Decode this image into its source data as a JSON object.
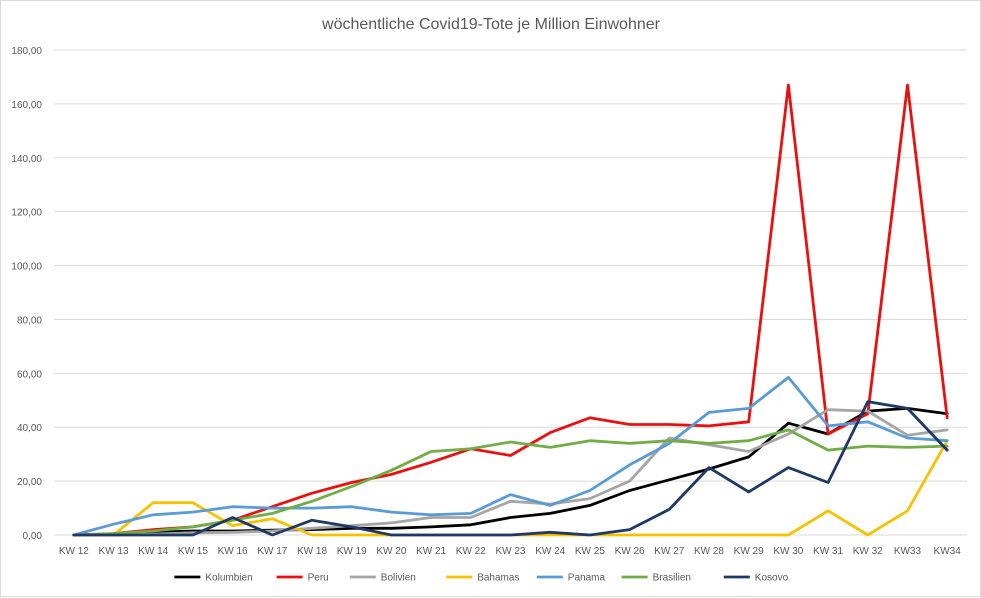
{
  "chart_data": {
    "type": "line",
    "title": "wöchentliche Covid19-Tote je Million Einwohner",
    "xlabel": "",
    "ylabel": "",
    "ylim": [
      0,
      180
    ],
    "y_tick_step": 20,
    "y_tick_labels": [
      "0,00",
      "20,00",
      "40,00",
      "60,00",
      "80,00",
      "100,00",
      "120,00",
      "140,00",
      "160,00",
      "180,00"
    ],
    "grid": "horizontal",
    "legend_position": "bottom",
    "categories": [
      "KW 12",
      "KW 13",
      "KW 14",
      "KW 15",
      "KW 16",
      "KW 17",
      "KW 18",
      "KW 19",
      "KW 20",
      "KW 21",
      "KW 22",
      "KW 23",
      "KW 24",
      "KW 25",
      "KW 26",
      "KW 27",
      "KW 28",
      "KW 29",
      "KW 30",
      "KW 31",
      "KW 32",
      "KW33",
      "KW34"
    ],
    "series": [
      {
        "name": "Kolumbien",
        "color": "#000000",
        "values": [
          0,
          0.3,
          1,
          1.5,
          1.5,
          1.8,
          2,
          2.5,
          2.5,
          3,
          3.8,
          6.5,
          8,
          11,
          16.5,
          20.5,
          24.5,
          29,
          41.5,
          37.5,
          46,
          47,
          45
        ]
      },
      {
        "name": "Peru",
        "color": "#e81010",
        "values": [
          0,
          0.5,
          2,
          3,
          5.5,
          10.5,
          15.5,
          19.5,
          22.5,
          27,
          32,
          29.5,
          38,
          43.5,
          41,
          41,
          40.5,
          42,
          167,
          37.5,
          45,
          167,
          43.5
        ]
      },
      {
        "name": "Bolivien",
        "color": "#a5a5a5",
        "values": [
          0,
          0,
          0.3,
          0.8,
          1,
          1.5,
          2.5,
          3.5,
          4.5,
          6.5,
          6.5,
          12.5,
          11.5,
          13.5,
          20,
          36,
          33.5,
          31,
          37.5,
          46.5,
          46,
          37,
          39
        ]
      },
      {
        "name": "Bahamas",
        "color": "#f5c200",
        "values": [
          0,
          0,
          12,
          12,
          3.5,
          6,
          0,
          0,
          0,
          0,
          0,
          0,
          0,
          0,
          0,
          0,
          0,
          0,
          0,
          9,
          0,
          9,
          35
        ]
      },
      {
        "name": "Panama",
        "color": "#5b9bd5",
        "values": [
          0,
          4,
          7.5,
          8.5,
          10.5,
          10,
          10,
          10.5,
          8.5,
          7.5,
          8,
          15,
          11,
          16.5,
          26,
          34,
          45.5,
          47,
          58.5,
          40.5,
          42,
          36,
          35
        ]
      },
      {
        "name": "Brasilien",
        "color": "#70ad47",
        "values": [
          0,
          0.5,
          1.5,
          3,
          5.5,
          8,
          12.5,
          18,
          24,
          31,
          32,
          34.5,
          32.5,
          35,
          34,
          35,
          34,
          35,
          39,
          31.5,
          33,
          32.5,
          33
        ]
      },
      {
        "name": "Kosovo",
        "color": "#1f3864",
        "values": [
          0,
          0,
          0,
          0,
          6.5,
          0,
          5.5,
          3,
          0,
          0,
          0,
          0,
          1,
          0,
          2,
          9.5,
          25,
          16,
          25,
          19.5,
          49.5,
          47,
          31.5
        ]
      }
    ]
  }
}
